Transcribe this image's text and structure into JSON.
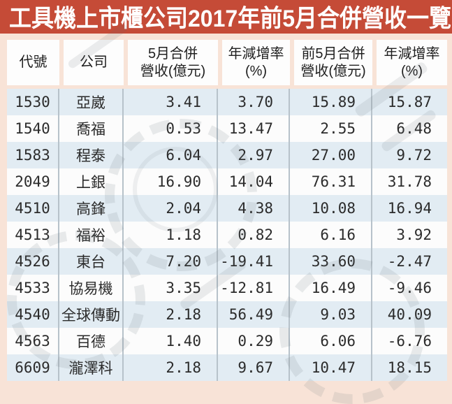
{
  "colors": {
    "banner_background": "#c54b37",
    "banner_text": "#ffffff",
    "page_background": "#f8e3d7",
    "header_cell_background": "#fdfdfd",
    "row_alternate_blue": "#e2ecf3",
    "row_alternate_white": "#fcfcfc",
    "column_divider": "#b7c2ca",
    "body_text": "#2b2b2b"
  },
  "chart_data": {
    "type": "table",
    "title": "工具機上市櫃公司2017年前5月合併營收一覽",
    "columns": [
      {
        "id": "code",
        "line1": "代號",
        "line2": ""
      },
      {
        "id": "company",
        "line1": "公司",
        "line2": ""
      },
      {
        "id": "may_revenue",
        "line1": "5月合併",
        "line2": "營收(億元)"
      },
      {
        "id": "may_yoy",
        "line1": "年減增率",
        "line2": "(%)"
      },
      {
        "id": "ytd_revenue",
        "line1": "前5月合併",
        "line2": "營收(億元)"
      },
      {
        "id": "ytd_yoy",
        "line1": "年減增率",
        "line2": "(%)"
      }
    ],
    "rows": [
      {
        "code": "1530",
        "company": "亞崴",
        "may_revenue": "3.41",
        "may_yoy": "3.70",
        "ytd_revenue": "15.89",
        "ytd_yoy": "15.87"
      },
      {
        "code": "1540",
        "company": "喬福",
        "may_revenue": "0.53",
        "may_yoy": "13.47",
        "ytd_revenue": "2.55",
        "ytd_yoy": "6.48"
      },
      {
        "code": "1583",
        "company": "程泰",
        "may_revenue": "6.04",
        "may_yoy": "2.97",
        "ytd_revenue": "27.00",
        "ytd_yoy": "9.72"
      },
      {
        "code": "2049",
        "company": "上銀",
        "may_revenue": "16.90",
        "may_yoy": "14.04",
        "ytd_revenue": "76.31",
        "ytd_yoy": "31.78"
      },
      {
        "code": "4510",
        "company": "高鋒",
        "may_revenue": "2.04",
        "may_yoy": "4.38",
        "ytd_revenue": "10.08",
        "ytd_yoy": "16.94"
      },
      {
        "code": "4513",
        "company": "福裕",
        "may_revenue": "1.18",
        "may_yoy": "0.82",
        "ytd_revenue": "6.16",
        "ytd_yoy": "3.92"
      },
      {
        "code": "4526",
        "company": "東台",
        "may_revenue": "7.20",
        "may_yoy": "-19.41",
        "ytd_revenue": "33.60",
        "ytd_yoy": "-2.47"
      },
      {
        "code": "4533",
        "company": "協易機",
        "may_revenue": "3.35",
        "may_yoy": "-12.81",
        "ytd_revenue": "16.49",
        "ytd_yoy": "-9.46"
      },
      {
        "code": "4540",
        "company": "全球傳動",
        "may_revenue": "2.18",
        "may_yoy": "56.49",
        "ytd_revenue": "9.03",
        "ytd_yoy": "40.09"
      },
      {
        "code": "4563",
        "company": "百德",
        "may_revenue": "1.40",
        "may_yoy": "0.29",
        "ytd_revenue": "6.06",
        "ytd_yoy": "-6.76"
      },
      {
        "code": "6609",
        "company": "瀧澤科",
        "may_revenue": "2.18",
        "may_yoy": "9.67",
        "ytd_revenue": "10.47",
        "ytd_yoy": "18.15"
      }
    ]
  }
}
